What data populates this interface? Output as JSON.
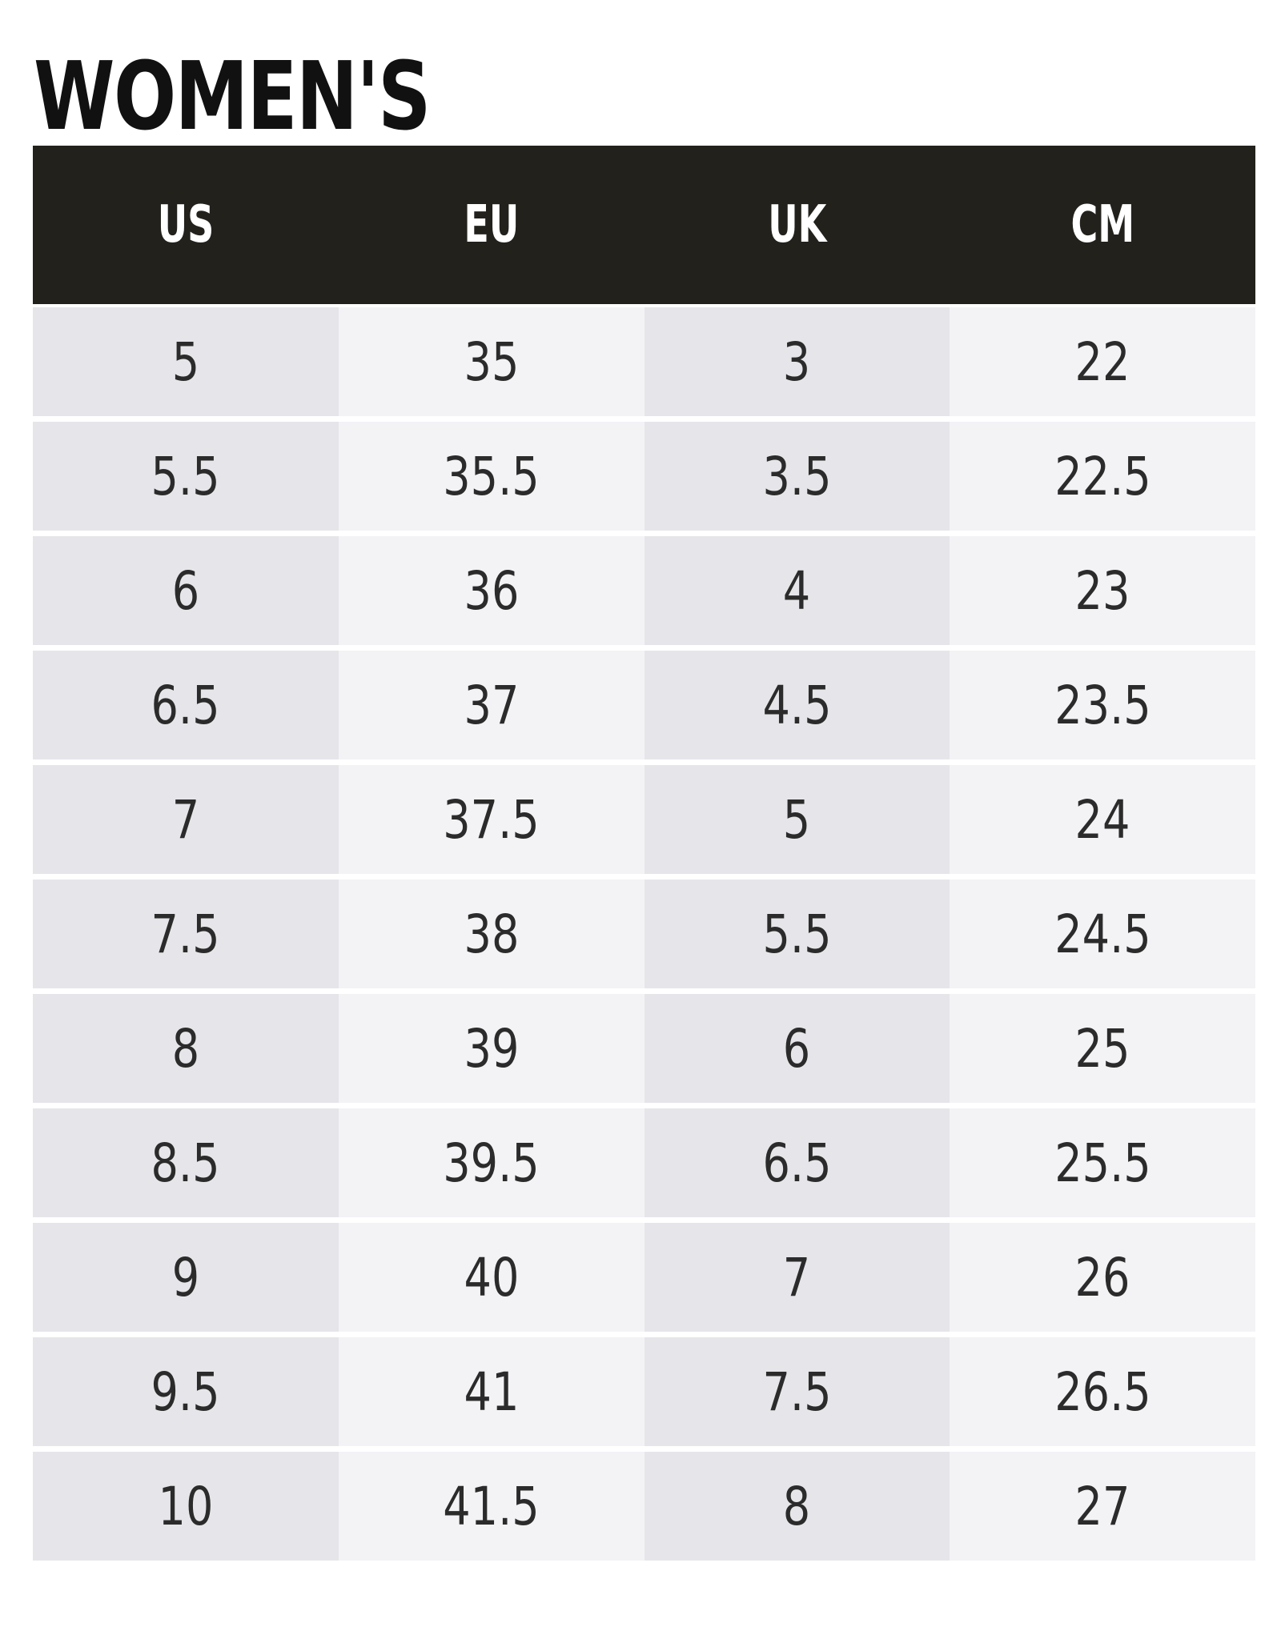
{
  "title": "WOMEN'S",
  "table": {
    "headers": [
      "US",
      "EU",
      "UK",
      "CM"
    ],
    "rows": [
      [
        "5",
        "35",
        "3",
        "22"
      ],
      [
        "5.5",
        "35.5",
        "3.5",
        "22.5"
      ],
      [
        "6",
        "36",
        "4",
        "23"
      ],
      [
        "6.5",
        "37",
        "4.5",
        "23.5"
      ],
      [
        "7",
        "37.5",
        "5",
        "24"
      ],
      [
        "7.5",
        "38",
        "5.5",
        "24.5"
      ],
      [
        "8",
        "39",
        "6",
        "25"
      ],
      [
        "8.5",
        "39.5",
        "6.5",
        "25.5"
      ],
      [
        "9",
        "40",
        "7",
        "26"
      ],
      [
        "9.5",
        "41",
        "7.5",
        "26.5"
      ],
      [
        "10",
        "41.5",
        "8",
        "27"
      ]
    ]
  },
  "colors": {
    "header_background": "#22211c",
    "header_text": "#ffffff",
    "column_shade_dark": "#e6e6ea",
    "column_shade_light": "#f3f3f6",
    "cell_text": "#2b2b2b"
  }
}
